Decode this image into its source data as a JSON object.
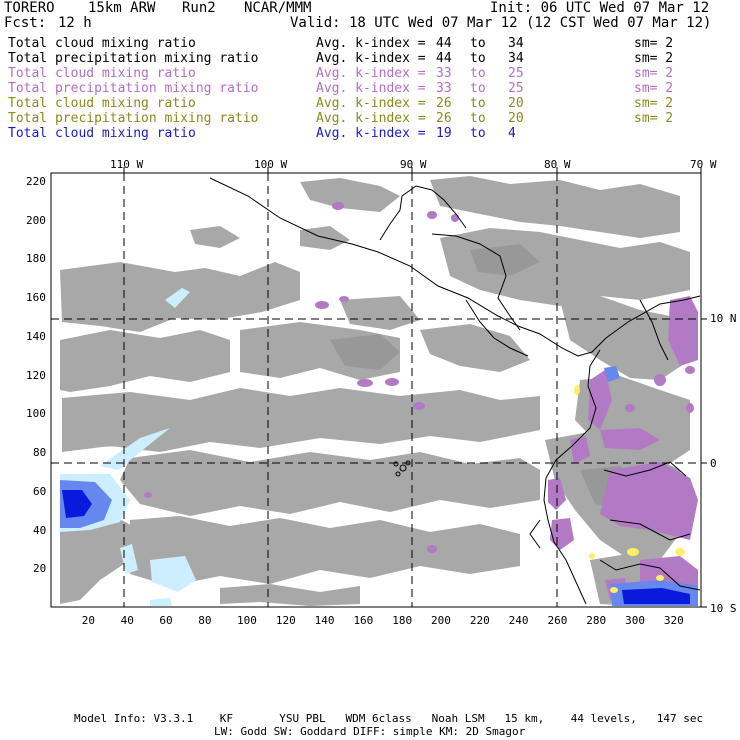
{
  "header": {
    "model": "TORERO",
    "resolution": "15km ARW",
    "run": "Run2",
    "org": "NCAR/MMM",
    "init": "Init: 06 UTC Wed 07 Mar 12",
    "fcst_label": "Fcst:",
    "fcst_value": "12 h",
    "valid": "Valid: 18 UTC Wed 07 Mar 12 (12 CST Wed 07 Mar 12)"
  },
  "legend": [
    {
      "label": "Total cloud mixing ratio",
      "avg": "Avg. k-index =",
      "from": "44",
      "to_word": "to",
      "to": "34",
      "sm": "sm= 2",
      "color": "#000000"
    },
    {
      "label": "Total precipitation mixing ratio",
      "avg": "Avg. k-index =",
      "from": "44",
      "to_word": "to",
      "to": "34",
      "sm": "sm= 2",
      "color": "#000000"
    },
    {
      "label": "Total cloud mixing ratio",
      "avg": "Avg. k-index =",
      "from": "33",
      "to_word": "to",
      "to": "25",
      "sm": "sm= 2",
      "color": "#b070c8"
    },
    {
      "label": "Total precipitation mixing ratio",
      "avg": "Avg. k-index =",
      "from": "33",
      "to_word": "to",
      "to": "25",
      "sm": "sm= 2",
      "color": "#b070c8"
    },
    {
      "label": "Total cloud mixing ratio",
      "avg": "Avg. k-index =",
      "from": "26",
      "to_word": "to",
      "to": "20",
      "sm": "sm= 2",
      "color": "#8a8a1e"
    },
    {
      "label": "Total precipitation mixing ratio",
      "avg": "Avg. k-index =",
      "from": "26",
      "to_word": "to",
      "to": "20",
      "sm": "sm= 2",
      "color": "#8a8a1e"
    },
    {
      "label": "Total cloud mixing ratio",
      "avg": "Avg. k-index =",
      "from": "19",
      "to_word": "to",
      "to": "4",
      "sm": "",
      "color": "#1a1ad0"
    }
  ],
  "map": {
    "lon_labels": [
      "110 W",
      "100 W",
      "90 W",
      "80 W",
      "70 W"
    ],
    "lat_labels": [
      "10 N",
      "0",
      "10 S"
    ],
    "x_ticks": [
      "20",
      "40",
      "60",
      "80",
      "100",
      "120",
      "140",
      "160",
      "180",
      "200",
      "220",
      "240",
      "260",
      "280",
      "300",
      "320"
    ],
    "y_ticks": [
      "220",
      "200",
      "180",
      "160",
      "140",
      "120",
      "100",
      "80",
      "60",
      "40",
      "20"
    ],
    "colors": {
      "cloud_gray": "#a8a8a8",
      "cloud_gray_dark": "#989898",
      "precip_purple": "#b27ac4",
      "light_blue": "#cceeff",
      "mid_blue": "#6688ee",
      "deep_blue": "#0a1adc",
      "yellow": "#ffee66"
    }
  },
  "footer": {
    "line1": "Model Info: V3.3.1    KF       YSU PBL   WDM 6class   Noah LSM   15 km,    44 levels,   147 sec",
    "line2": "LW: Godd SW: Goddard DIFF: simple KM: 2D Smagor"
  }
}
